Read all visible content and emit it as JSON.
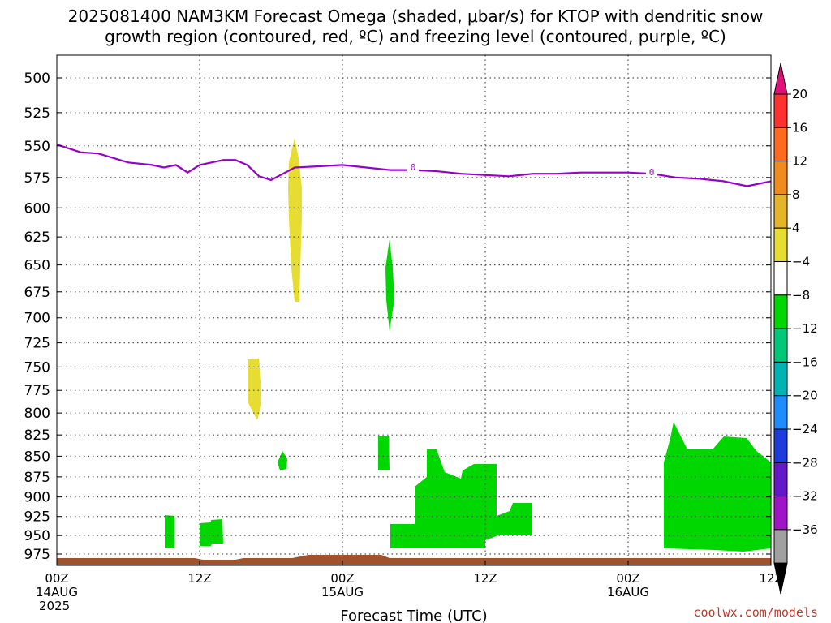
{
  "title": {
    "line1": "2025081400 NAM3KM Forecast Omega (shaded, μbar/s) for KTOP with dendritic snow",
    "line2": "growth region (contoured, red, ºC) and freezing level (contoured, purple, ºC)"
  },
  "xaxis_title": "Forecast Time (UTC)",
  "credit": "coolwx.com/models",
  "colors": {
    "green": "#00d700",
    "yellow": "#e6dc32",
    "purple": "#9900cc",
    "ground": "#a0522d",
    "credit": "#c0392b"
  },
  "chart_data": {
    "type": "heatmap",
    "xlabel": "Forecast Time (UTC)",
    "ylabel": "",
    "x_range_hours": [
      0,
      60
    ],
    "y_range_mb": [
      490,
      980
    ],
    "y_reversed": true,
    "y_scale": "log-pressure",
    "grid": true,
    "y_ticks": [
      500,
      525,
      550,
      575,
      600,
      625,
      650,
      675,
      700,
      725,
      750,
      775,
      800,
      825,
      850,
      875,
      900,
      925,
      950,
      975
    ],
    "x_ticks": [
      {
        "hour": 0,
        "l1": "00Z",
        "l2": "14AUG",
        "l3": "2025"
      },
      {
        "hour": 12,
        "l1": "12Z",
        "l2": "",
        "l3": ""
      },
      {
        "hour": 24,
        "l1": "00Z",
        "l2": "15AUG",
        "l3": ""
      },
      {
        "hour": 36,
        "l1": "12Z",
        "l2": "",
        "l3": ""
      },
      {
        "hour": 48,
        "l1": "00Z",
        "l2": "16AUG",
        "l3": ""
      },
      {
        "hour": 60,
        "l1": "12Z",
        "l2": "",
        "l3": ""
      }
    ],
    "colorbar": {
      "units": "μbar/s",
      "bins": [
        {
          "lo": 20,
          "hi": null,
          "color": "#e0107a"
        },
        {
          "lo": 16,
          "hi": 20,
          "color": "#ff3030"
        },
        {
          "lo": 12,
          "hi": 16,
          "color": "#ff6a1f"
        },
        {
          "lo": 8,
          "hi": 12,
          "color": "#f08c1e"
        },
        {
          "lo": 4,
          "hi": 8,
          "color": "#e6b428"
        },
        {
          "lo": -4,
          "hi": 4,
          "color": "#e6dc32"
        },
        {
          "lo": -8,
          "hi": -4,
          "color": "#ffffff"
        },
        {
          "lo": -12,
          "hi": -8,
          "color": "#00d700"
        },
        {
          "lo": -16,
          "hi": -12,
          "color": "#00c878"
        },
        {
          "lo": -20,
          "hi": -16,
          "color": "#00b4b4"
        },
        {
          "lo": -24,
          "hi": -20,
          "color": "#1e8cff"
        },
        {
          "lo": -28,
          "hi": -24,
          "color": "#1e3cdc"
        },
        {
          "lo": -32,
          "hi": -28,
          "color": "#6418c8"
        },
        {
          "lo": -36,
          "hi": -32,
          "color": "#a014c8"
        },
        {
          "lo": null,
          "hi": -36,
          "color": "#a0a0a0"
        }
      ],
      "labels": [
        "20",
        "16",
        "12",
        "8",
        "4",
        "−4",
        "−8",
        "−12",
        "−16",
        "−20",
        "−24",
        "−28",
        "−32",
        "−36"
      ],
      "end_color": "#000000"
    },
    "freezing_level": {
      "label": "0",
      "hours": [
        0,
        2,
        3.5,
        6,
        8,
        9,
        10,
        11,
        12,
        13,
        14,
        15,
        16,
        17,
        18,
        19,
        20,
        22,
        24,
        26,
        28,
        30,
        32,
        34,
        36,
        38,
        40,
        42,
        44,
        46,
        48,
        50,
        52,
        54,
        56,
        58,
        60
      ],
      "levels_mb": [
        549,
        555,
        556,
        563,
        565,
        567,
        565,
        571,
        565,
        563,
        561,
        561,
        565,
        574,
        577,
        572,
        567,
        566,
        565,
        567,
        569,
        569,
        570,
        572,
        573,
        574,
        572,
        572,
        571,
        571,
        571,
        572,
        575,
        576,
        578,
        582,
        578
      ]
    }
  }
}
